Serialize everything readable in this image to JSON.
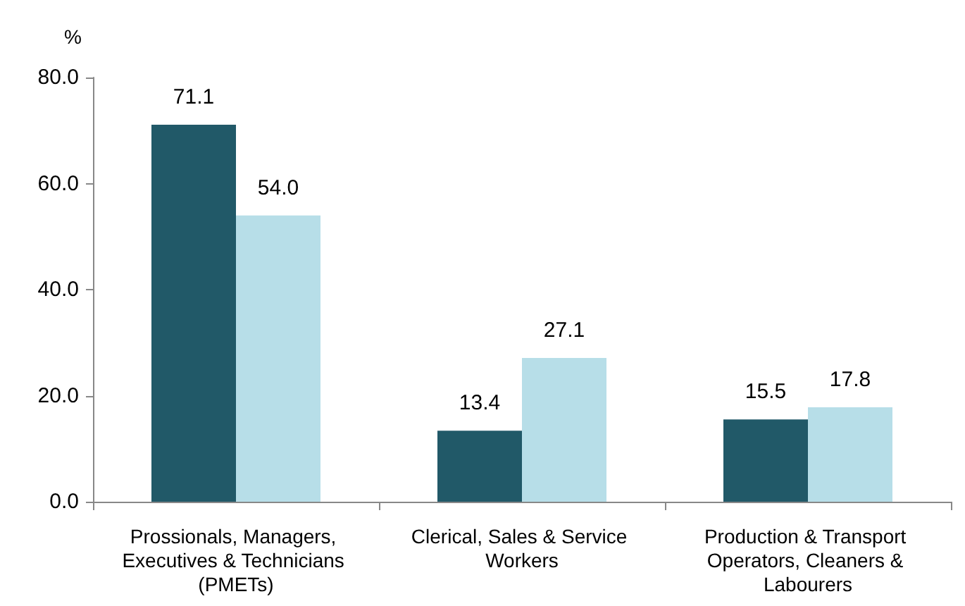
{
  "chart_data": {
    "type": "bar",
    "ylabel": "%",
    "categories": [
      "Prossionals, Managers, Executives & Technicians (PMETs)",
      "Clerical, Sales & Service Workers",
      "Production & Transport Operators, Cleaners & Labourers"
    ],
    "series": [
      {
        "color": "#215968",
        "values": [
          71.1,
          13.4,
          15.5
        ],
        "value_labels": [
          "71.1",
          "13.4",
          "15.5"
        ]
      },
      {
        "color": "#b7dee8",
        "values": [
          54.0,
          27.1,
          17.8
        ],
        "value_labels": [
          "54.0",
          "27.1",
          "17.8"
        ]
      }
    ],
    "ylim": [
      0,
      80
    ],
    "yticks": [
      {
        "value": 0,
        "label": "0.0"
      },
      {
        "value": 20,
        "label": "20.0"
      },
      {
        "value": 40,
        "label": "40.0"
      },
      {
        "value": 60,
        "label": "60.0"
      },
      {
        "value": 80,
        "label": "80.0"
      }
    ],
    "grid": false
  }
}
